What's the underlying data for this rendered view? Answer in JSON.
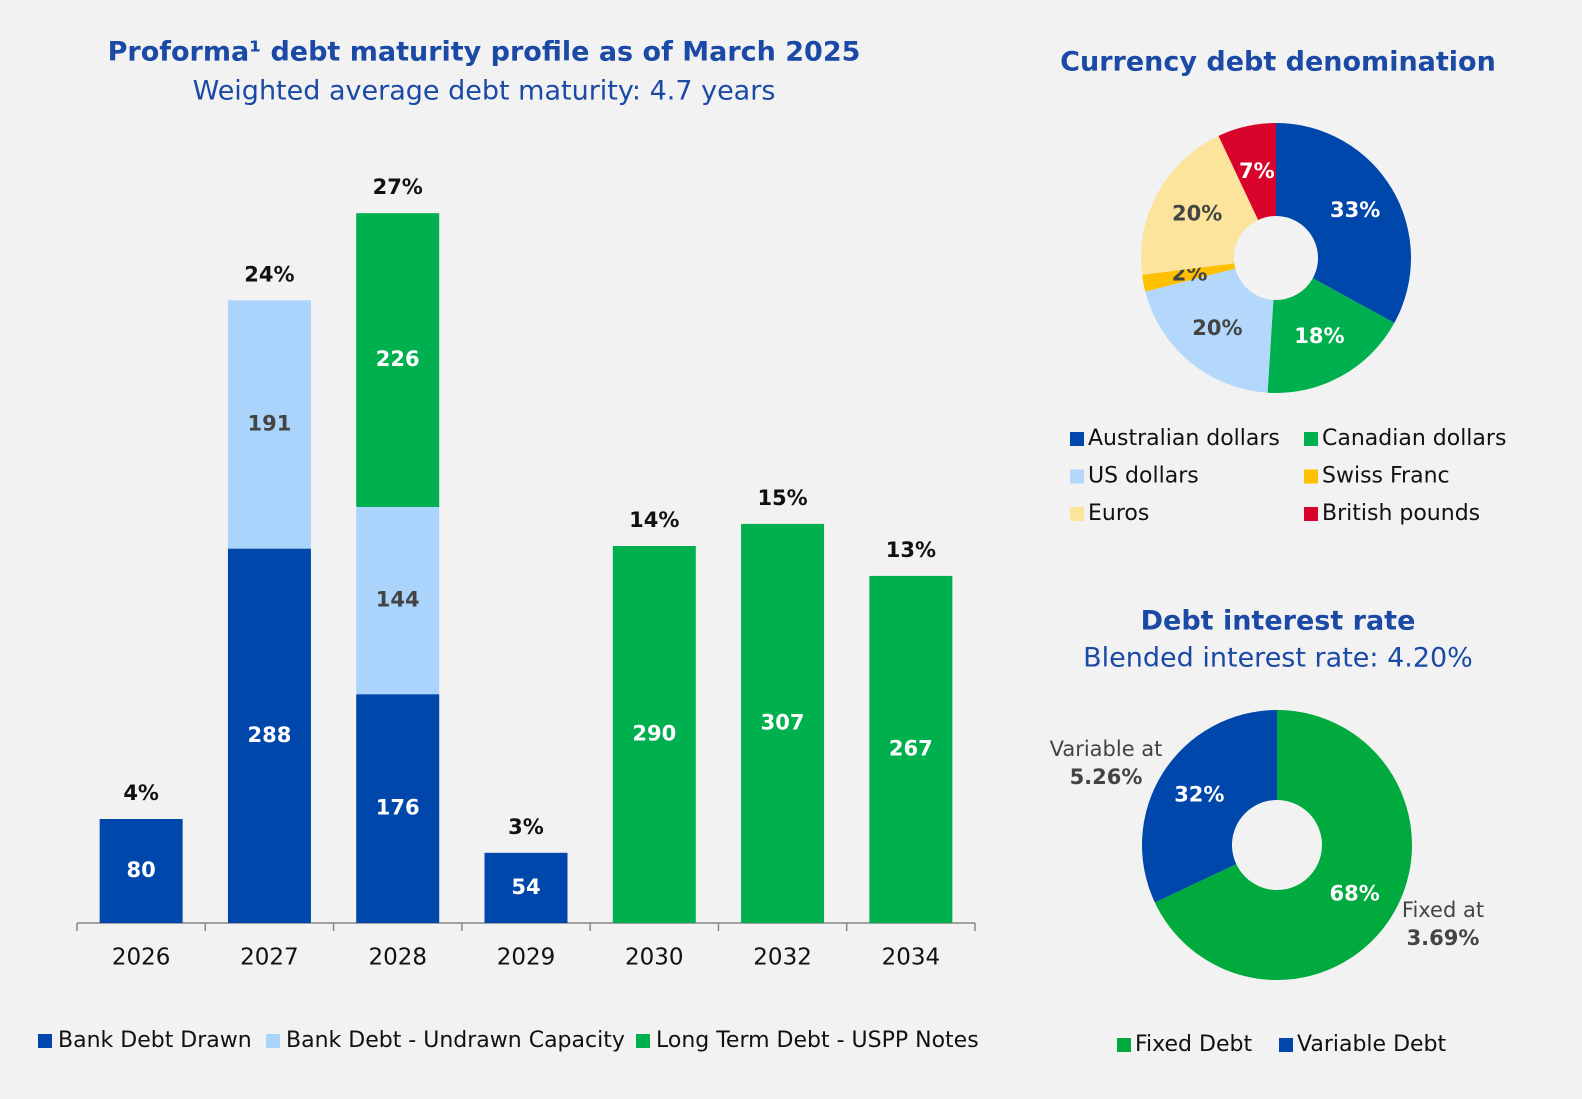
{
  "chart_data": [
    {
      "type": "bar",
      "stacked": true,
      "title": "Proforma¹ debt maturity profile as of March 2025",
      "subtitle": "Weighted average debt maturity: 4.7 years",
      "categories": [
        "2026",
        "2027",
        "2028",
        "2029",
        "2030",
        "2032",
        "2034"
      ],
      "series": [
        {
          "name": "Bank Debt Drawn",
          "color": "#0047ab",
          "values": [
            80,
            288,
            176,
            54,
            null,
            null,
            null
          ]
        },
        {
          "name": "Bank Debt - Undrawn Capacity",
          "color": "#aad4fb",
          "values": [
            null,
            191,
            144,
            null,
            null,
            null,
            null
          ]
        },
        {
          "name": "Long Term Debt - USPP Notes",
          "color": "#00b04f",
          "values": [
            null,
            null,
            226,
            null,
            290,
            307,
            267
          ]
        }
      ],
      "share_labels": [
        "4%",
        "24%",
        "27%",
        "3%",
        "14%",
        "15%",
        "13%"
      ]
    },
    {
      "type": "pie",
      "title": "Currency debt denomination",
      "categories": [
        "Australian dollars",
        "Canadian dollars",
        "US dollars",
        "Swiss Franc",
        "Euros",
        "British pounds"
      ],
      "values": [
        33,
        18,
        20,
        2,
        20,
        7
      ],
      "value_labels": [
        "33%",
        "18%",
        "20%",
        "2%",
        "20%",
        "7%"
      ],
      "colors": [
        "#0047ab",
        "#00b04f",
        "#b3d8fb",
        "#ffc000",
        "#fde49c",
        "#d9042b"
      ]
    },
    {
      "type": "pie",
      "title": "Debt interest rate",
      "subtitle": "Blended interest rate: 4.20%",
      "categories": [
        "Fixed Debt",
        "Variable Debt"
      ],
      "values": [
        68,
        32
      ],
      "value_labels": [
        "68%",
        "32%"
      ],
      "colors": [
        "#00aa3c",
        "#0047ab"
      ],
      "annotations": [
        {
          "text": "Fixed at",
          "value": "3.69%"
        },
        {
          "text": "Variable at",
          "value": "5.26%"
        }
      ]
    }
  ]
}
